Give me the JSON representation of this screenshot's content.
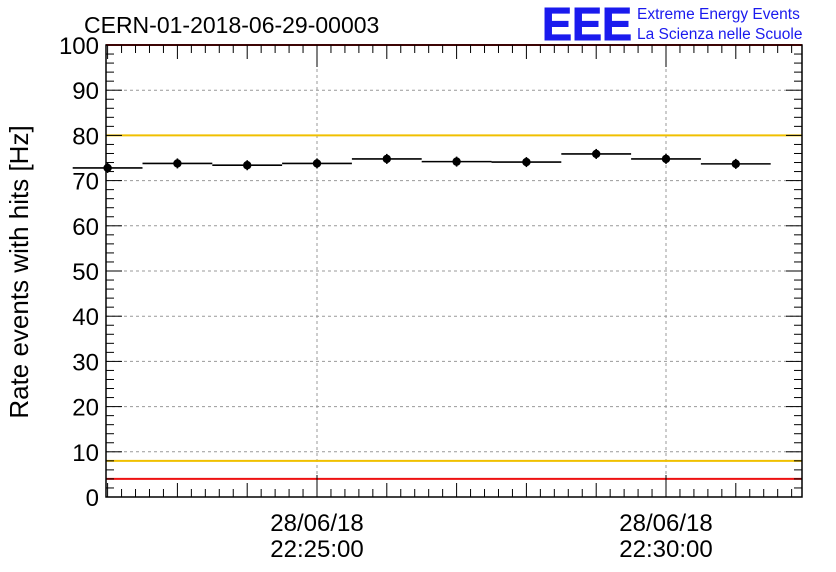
{
  "chart_data": {
    "type": "scatter",
    "title": "CERN-01-2018-06-29-00003",
    "ylabel": "Rate events with hits [Hz]",
    "xlabel": "",
    "ylim": [
      0,
      100
    ],
    "yticks": [
      "0",
      "10",
      "20",
      "30",
      "40",
      "50",
      "60",
      "70",
      "80",
      "90",
      "100"
    ],
    "x_tick_labels": [
      {
        "date": "28/06/18",
        "time": "22:25:00"
      },
      {
        "date": "28/06/18",
        "time": "22:30:00"
      }
    ],
    "grid": true,
    "reference_lines": [
      {
        "y": 100,
        "color": "#ee1111"
      },
      {
        "y": 80,
        "color": "#f0c000"
      },
      {
        "y": 8,
        "color": "#f0c000"
      },
      {
        "y": 4,
        "color": "#ee1111"
      }
    ],
    "points": [
      {
        "x": "22:22:00",
        "y": 72.8
      },
      {
        "x": "22:23:00",
        "y": 73.8
      },
      {
        "x": "22:24:00",
        "y": 73.4
      },
      {
        "x": "22:25:00",
        "y": 73.8
      },
      {
        "x": "22:26:00",
        "y": 74.8
      },
      {
        "x": "22:27:00",
        "y": 74.2
      },
      {
        "x": "22:28:00",
        "y": 74.1
      },
      {
        "x": "22:29:00",
        "y": 75.9
      },
      {
        "x": "22:30:00",
        "y": 74.8
      },
      {
        "x": "22:31:00",
        "y": 73.7
      }
    ],
    "marker_color": "#000000"
  },
  "logo": {
    "mark": "EEE",
    "line1": "Extreme Energy Events",
    "line2": "La Scienza nelle Scuole",
    "color": "#1a1aee"
  }
}
